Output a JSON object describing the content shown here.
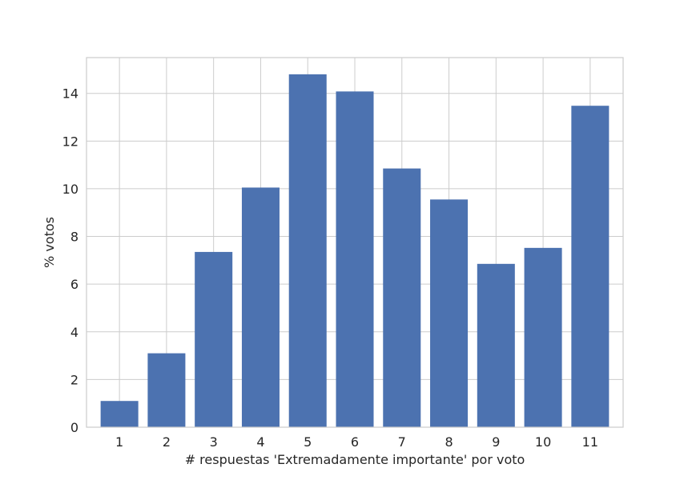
{
  "chart_data": {
    "type": "bar",
    "categories": [
      "1",
      "2",
      "3",
      "4",
      "5",
      "6",
      "7",
      "8",
      "9",
      "10",
      "11"
    ],
    "values": [
      1.1,
      3.1,
      7.35,
      10.05,
      14.8,
      14.08,
      10.85,
      9.55,
      6.85,
      7.52,
      13.48
    ],
    "xlabel": "# respuestas 'Extremadamente importante' por voto",
    "ylabel": "% votos",
    "ylim": [
      0,
      15.5
    ],
    "yticks": [
      "0",
      "2",
      "4",
      "6",
      "8",
      "10",
      "12",
      "14"
    ],
    "grid": true,
    "bar_color": "#4c72b0",
    "grid_color": "#cccccc",
    "text_color": "#262626"
  }
}
